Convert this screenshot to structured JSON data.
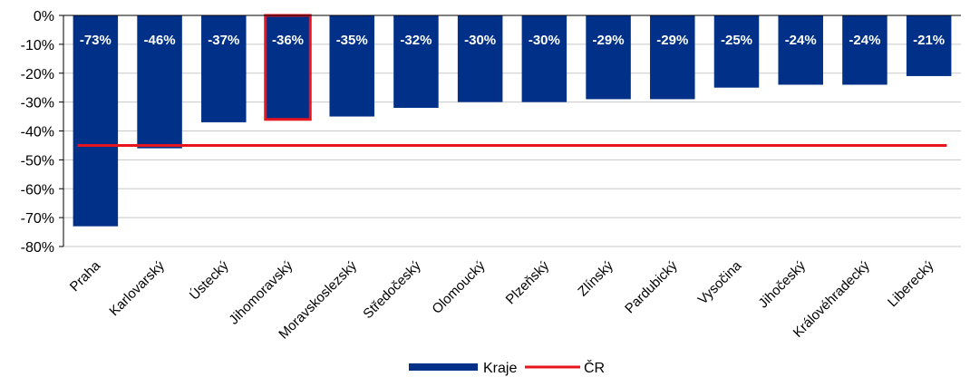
{
  "chart_data": {
    "type": "bar",
    "categories": [
      "Praha",
      "Karlovarský",
      "Ústecký",
      "Jihomoravský",
      "Moravskoslezský",
      "Středočeský",
      "Olomoucký",
      "Plzeňský",
      "Zlínský",
      "Pardubický",
      "Vysočina",
      "Jihočeský",
      "Královéhradecký",
      "Liberecký"
    ],
    "series": [
      {
        "name": "Kraje",
        "values": [
          -73,
          -46,
          -37,
          -36,
          -35,
          -32,
          -30,
          -30,
          -29,
          -29,
          -25,
          -24,
          -24,
          -21
        ],
        "labels": [
          "-73%",
          "-46%",
          "-37%",
          "-36%",
          "-35%",
          "-32%",
          "-30%",
          "-30%",
          "-29%",
          "-29%",
          "-25%",
          "-24%",
          "-24%",
          "-21%"
        ],
        "color": "#003087"
      },
      {
        "name": "ČR",
        "type": "line",
        "value": -45,
        "color": "#e8141e"
      }
    ],
    "highlighted_category": "Jihomoravský",
    "highlight_color": "#e8141e",
    "ylim": [
      -80,
      0
    ],
    "yticks": [
      0,
      -10,
      -20,
      -30,
      -40,
      -50,
      -60,
      -70,
      -80
    ],
    "ytick_labels": [
      "0%",
      "-10%",
      "-20%",
      "-30%",
      "-40%",
      "-50%",
      "-60%",
      "-70%",
      "-80%"
    ],
    "grid": true,
    "legend_position": "bottom"
  }
}
